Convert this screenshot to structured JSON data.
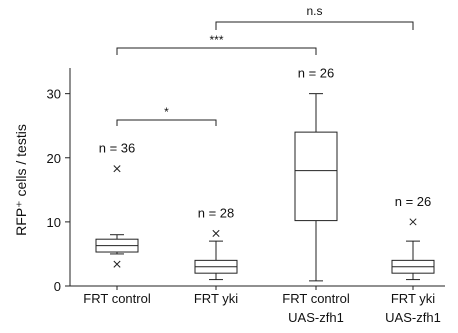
{
  "chart_data": {
    "type": "box",
    "ylabel": "RFP⁺ cells / testis",
    "ylim": [
      0,
      34
    ],
    "yticks": [
      0,
      10,
      20,
      30
    ],
    "categories": [
      {
        "lines": [
          "FRT control"
        ]
      },
      {
        "lines": [
          "FRT yki"
        ]
      },
      {
        "lines": [
          "FRT control",
          "UAS-zfh1"
        ]
      },
      {
        "lines": [
          "FRT yki",
          "UAS-zfh1"
        ]
      }
    ],
    "boxes": [
      {
        "whisker_low": 5,
        "q1": 5.3,
        "median": 6.3,
        "q3": 7.3,
        "whisker_high": 8,
        "outliers": [
          18.3,
          3.4
        ],
        "n_label": "n = 36"
      },
      {
        "whisker_low": 1,
        "q1": 2,
        "median": 3,
        "q3": 4,
        "whisker_high": 7,
        "outliers": [
          8.2
        ],
        "n_label": "n = 28"
      },
      {
        "whisker_low": 0.8,
        "q1": 10.2,
        "median": 18,
        "q3": 24,
        "whisker_high": 30,
        "outliers": [],
        "n_label": "n = 26"
      },
      {
        "whisker_low": 1,
        "q1": 2,
        "median": 3,
        "q3": 4,
        "whisker_high": 7,
        "outliers": [
          10
        ],
        "n_label": "n = 26"
      }
    ],
    "significance": [
      {
        "from": 0,
        "to": 1,
        "label": "*"
      },
      {
        "from": 0,
        "to": 2,
        "label": "***"
      },
      {
        "from": 1,
        "to": 3,
        "label": "n.s"
      }
    ]
  }
}
